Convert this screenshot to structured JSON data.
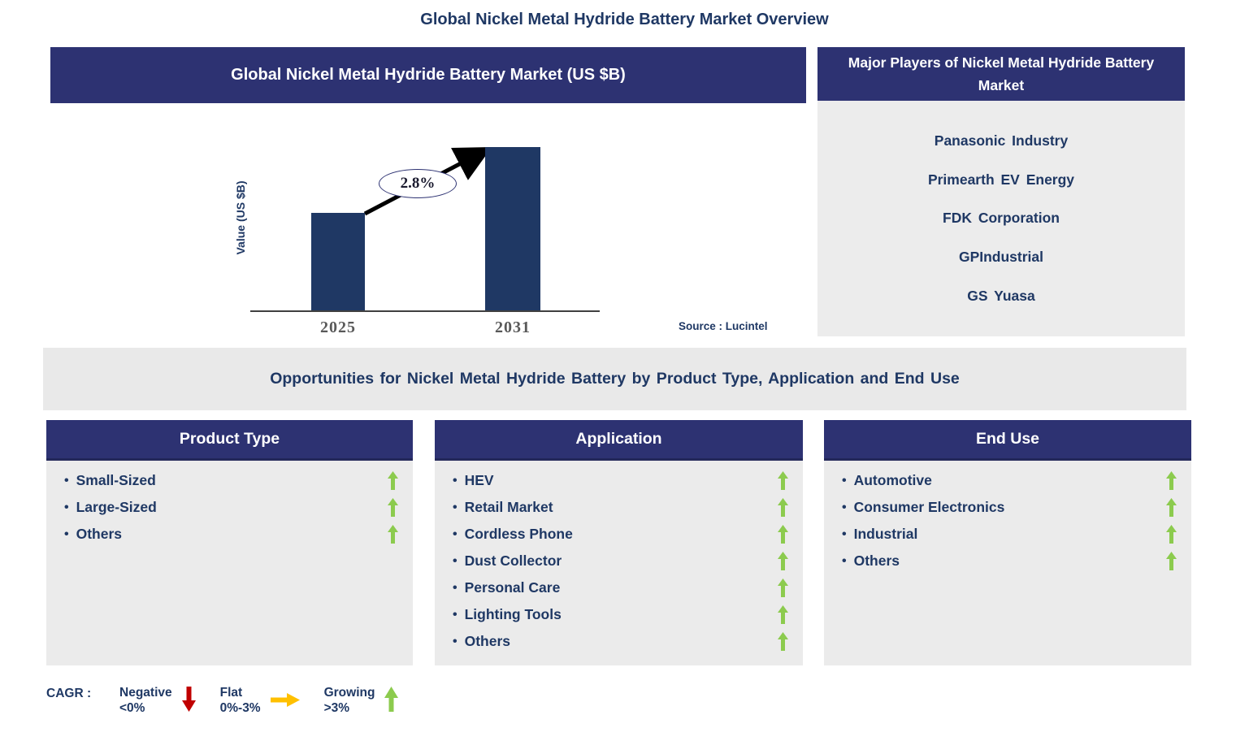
{
  "page_title": "Global Nickel Metal Hydride Battery Market Overview",
  "market_chart": {
    "header": "Global Nickel Metal Hydride Battery Market (US $B)",
    "source": "Source : Lucintel"
  },
  "chart_data": {
    "type": "bar",
    "title": "Global Nickel Metal Hydride Battery Market (US $B)",
    "categories": [
      "2025",
      "2031"
    ],
    "values_relative": [
      0.6,
      1.0
    ],
    "unit": "US $B",
    "ylabel": "Value (US $B)",
    "annotation": "2.8%",
    "axis_value_labels_shown": false,
    "grid": false,
    "legend_position": "none",
    "bar_color": "#1F3864"
  },
  "major_players": {
    "header": "Major Players of Nickel Metal Hydride Battery Market",
    "companies": [
      "Panasonic Industry",
      "Primearth EV Energy",
      "FDK Corporation",
      "GPIndustrial",
      "GS Yuasa"
    ]
  },
  "opportunities_banner": "Opportunities for Nickel Metal Hydride Battery by Product Type, Application and End Use",
  "segments": [
    {
      "header": "Product Type",
      "items": [
        "Small-Sized",
        "Large-Sized",
        "Others"
      ]
    },
    {
      "header": "Application",
      "items": [
        "HEV",
        "Retail Market",
        "Cordless Phone",
        "Dust Collector",
        "Personal Care",
        "Lighting Tools",
        "Others"
      ]
    },
    {
      "header": "End Use",
      "items": [
        "Automotive",
        "Consumer Electronics",
        "Industrial",
        "Others"
      ]
    }
  ],
  "item_trend_icon": "up-arrow",
  "legend": {
    "label": "CAGR :",
    "entries": [
      {
        "name": "Negative",
        "range": "<0%",
        "direction": "down",
        "color": "#C00000"
      },
      {
        "name": "Flat",
        "range": "0%-3%",
        "direction": "right",
        "color": "#FFC000"
      },
      {
        "name": "Growing",
        "range": ">3%",
        "direction": "up",
        "color": "#8CCB4E"
      }
    ]
  },
  "colors": {
    "header_navy": "#2D3272",
    "bar_navy": "#1F3864",
    "text_navy": "#1F3864",
    "panel_gray": "#EBEBEB",
    "growing_green": "#8CCB4E",
    "negative_red": "#C00000",
    "flat_yellow": "#FFC000"
  }
}
